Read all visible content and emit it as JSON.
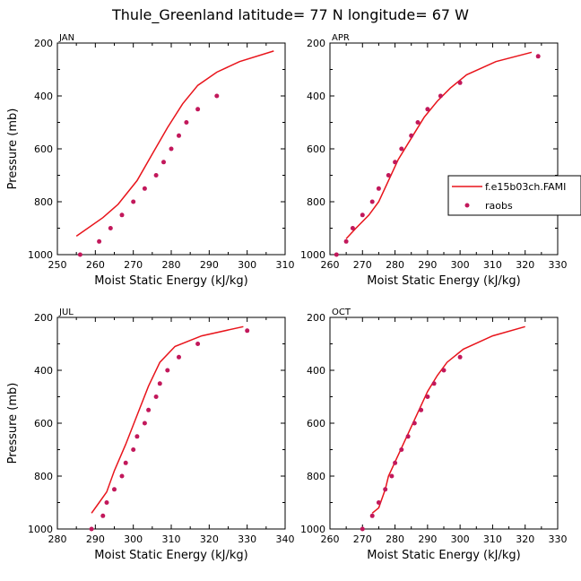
{
  "title": "Thule_Greenland  latitude= 77 N longitude= 67 W",
  "colors": {
    "model": "#e8141b",
    "obs": "#c2185b"
  },
  "legend": {
    "model_label": "f.e15b03ch.FAMI",
    "obs_label": "raobs"
  },
  "chart_data": [
    {
      "type": "line",
      "panel_label": "JAN",
      "xlabel": "Moist Static Energy (kJ/kg)",
      "ylabel": "Pressure (mb)",
      "xlim": [
        250,
        310
      ],
      "ylim": [
        1000,
        200
      ],
      "xticks": [
        250,
        260,
        270,
        280,
        290,
        300,
        310
      ],
      "yticks": [
        200,
        400,
        600,
        800,
        1000
      ],
      "model": [
        [
          255,
          930
        ],
        [
          262,
          860
        ],
        [
          266,
          810
        ],
        [
          271,
          720
        ],
        [
          275,
          620
        ],
        [
          279,
          520
        ],
        [
          283,
          430
        ],
        [
          287,
          360
        ],
        [
          292,
          310
        ],
        [
          298,
          270
        ],
        [
          307,
          230
        ]
      ],
      "obs": [
        [
          256,
          1000
        ],
        [
          261,
          950
        ],
        [
          264,
          900
        ],
        [
          267,
          850
        ],
        [
          270,
          800
        ],
        [
          273,
          750
        ],
        [
          276,
          700
        ],
        [
          278,
          650
        ],
        [
          280,
          600
        ],
        [
          282,
          550
        ],
        [
          284,
          500
        ],
        [
          287,
          450
        ],
        [
          292,
          400
        ]
      ]
    },
    {
      "type": "line",
      "panel_label": "APR",
      "xlabel": "Moist Static Energy (kJ/kg)",
      "ylabel": "",
      "xlim": [
        260,
        330
      ],
      "ylim": [
        1000,
        200
      ],
      "xticks": [
        260,
        270,
        280,
        290,
        300,
        310,
        320,
        330
      ],
      "yticks": [
        200,
        400,
        600,
        800,
        1000
      ],
      "model": [
        [
          265,
          940
        ],
        [
          268,
          900
        ],
        [
          272,
          850
        ],
        [
          275,
          800
        ],
        [
          278,
          720
        ],
        [
          281,
          640
        ],
        [
          285,
          560
        ],
        [
          289,
          480
        ],
        [
          293,
          420
        ],
        [
          297,
          370
        ],
        [
          302,
          320
        ],
        [
          311,
          270
        ],
        [
          322,
          235
        ]
      ],
      "obs": [
        [
          262,
          1000
        ],
        [
          265,
          950
        ],
        [
          267,
          900
        ],
        [
          270,
          850
        ],
        [
          273,
          800
        ],
        [
          275,
          750
        ],
        [
          278,
          700
        ],
        [
          280,
          650
        ],
        [
          282,
          600
        ],
        [
          285,
          550
        ],
        [
          287,
          500
        ],
        [
          290,
          450
        ],
        [
          294,
          400
        ],
        [
          300,
          350
        ],
        [
          324,
          250
        ]
      ]
    },
    {
      "type": "line",
      "panel_label": "JUL",
      "xlabel": "Moist Static Energy (kJ/kg)",
      "ylabel": "Pressure (mb)",
      "xlim": [
        280,
        340
      ],
      "ylim": [
        1000,
        200
      ],
      "xticks": [
        280,
        290,
        300,
        310,
        320,
        330,
        340
      ],
      "yticks": [
        200,
        400,
        600,
        800,
        1000
      ],
      "model": [
        [
          289,
          940
        ],
        [
          291,
          900
        ],
        [
          293,
          860
        ],
        [
          295,
          780
        ],
        [
          298,
          680
        ],
        [
          301,
          570
        ],
        [
          304,
          460
        ],
        [
          307,
          370
        ],
        [
          311,
          310
        ],
        [
          318,
          270
        ],
        [
          329,
          235
        ]
      ],
      "obs": [
        [
          289,
          1000
        ],
        [
          292,
          950
        ],
        [
          293,
          900
        ],
        [
          295,
          850
        ],
        [
          297,
          800
        ],
        [
          298,
          750
        ],
        [
          300,
          700
        ],
        [
          301,
          650
        ],
        [
          303,
          600
        ],
        [
          304,
          550
        ],
        [
          306,
          500
        ],
        [
          307,
          450
        ],
        [
          309,
          400
        ],
        [
          312,
          350
        ],
        [
          317,
          300
        ],
        [
          330,
          250
        ]
      ]
    },
    {
      "type": "line",
      "panel_label": "OCT",
      "xlabel": "Moist Static Energy (kJ/kg)",
      "ylabel": "",
      "xlim": [
        260,
        330
      ],
      "ylim": [
        1000,
        200
      ],
      "xticks": [
        260,
        270,
        280,
        290,
        300,
        310,
        320,
        330
      ],
      "yticks": [
        200,
        400,
        600,
        800,
        1000
      ],
      "model": [
        [
          273,
          940
        ],
        [
          275,
          920
        ],
        [
          277,
          850
        ],
        [
          278,
          800
        ],
        [
          281,
          720
        ],
        [
          284,
          640
        ],
        [
          287,
          560
        ],
        [
          290,
          480
        ],
        [
          293,
          420
        ],
        [
          296,
          370
        ],
        [
          301,
          320
        ],
        [
          310,
          270
        ],
        [
          320,
          235
        ]
      ],
      "obs": [
        [
          270,
          1000
        ],
        [
          273,
          950
        ],
        [
          275,
          900
        ],
        [
          277,
          850
        ],
        [
          279,
          800
        ],
        [
          280,
          750
        ],
        [
          282,
          700
        ],
        [
          284,
          650
        ],
        [
          286,
          600
        ],
        [
          288,
          550
        ],
        [
          290,
          500
        ],
        [
          292,
          450
        ],
        [
          295,
          400
        ],
        [
          300,
          350
        ]
      ]
    }
  ]
}
